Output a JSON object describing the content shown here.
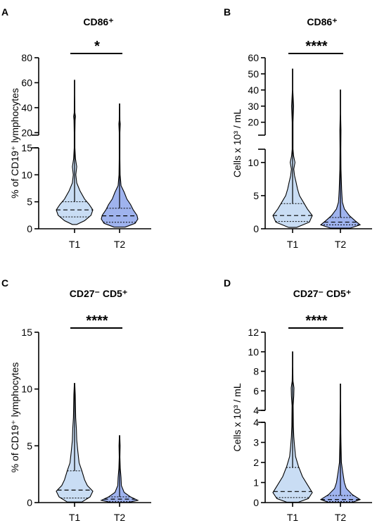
{
  "panels": [
    {
      "letter": "A",
      "title": "CD86⁺",
      "ylabel": "% of CD19⁺ lymphocytes",
      "significance": "*",
      "x_labels": [
        "T1",
        "T2"
      ],
      "lower_ticks": [
        "0",
        "5",
        "10",
        "15"
      ],
      "upper_ticks": [
        "20",
        "40",
        "60",
        "80"
      ]
    },
    {
      "letter": "B",
      "title": "CD86⁺",
      "ylabel": "Cells x 10³ / mL",
      "significance": "****",
      "x_labels": [
        "T1",
        "T2"
      ],
      "lower_ticks": [
        "0",
        "5",
        "10"
      ],
      "upper_ticks": [
        "20",
        "30",
        "40",
        "50",
        "60"
      ]
    },
    {
      "letter": "C",
      "title": "CD27⁻ CD5⁺",
      "ylabel": "% of CD19⁺ lymphocytes",
      "significance": "****",
      "x_labels": [
        "T1",
        "T2"
      ],
      "lower_ticks": [
        "0",
        "5",
        "10",
        "15"
      ],
      "upper_ticks": []
    },
    {
      "letter": "D",
      "title": "CD27⁻ CD5⁺",
      "ylabel": "Cells x 10³ / mL",
      "significance": "****",
      "x_labels": [
        "T1",
        "T2"
      ],
      "lower_ticks": [
        "0",
        "1",
        "2",
        "3",
        "4"
      ],
      "upper_ticks": [
        "4",
        "6",
        "8",
        "10",
        "12"
      ]
    }
  ],
  "colors": {
    "T1": "#c9ddf4",
    "T2": "#9fb3ee",
    "line": "#000000"
  },
  "chart_data": [
    {
      "type": "violin",
      "title": "CD86⁺",
      "ylabel": "% of CD19⁺ lymphocytes",
      "y_axis_break": true,
      "lower_ylim": [
        0,
        15
      ],
      "upper_ylim": [
        18,
        80
      ],
      "series": [
        {
          "name": "T1",
          "median": 3.5,
          "q1": 2.2,
          "q3": 5.0,
          "min": 0.8,
          "max": 62,
          "density": [
            [
              0.8,
              0.12
            ],
            [
              1.5,
              0.55
            ],
            [
              2.5,
              0.9
            ],
            [
              3.5,
              1.0
            ],
            [
              4.5,
              0.8
            ],
            [
              5.5,
              0.55
            ],
            [
              7,
              0.3
            ],
            [
              8.5,
              0.12
            ],
            [
              10,
              0.07
            ],
            [
              11.5,
              0.12
            ],
            [
              13,
              0.05
            ],
            [
              15,
              0.02
            ],
            [
              20,
              0.02
            ],
            [
              30,
              0.03
            ],
            [
              33,
              0.05
            ],
            [
              36,
              0.02
            ],
            [
              50,
              0.01
            ],
            [
              62,
              0.01
            ]
          ]
        },
        {
          "name": "T2",
          "median": 2.4,
          "q1": 1.2,
          "q3": 3.8,
          "min": 0.3,
          "max": 43,
          "density": [
            [
              0.3,
              0.3
            ],
            [
              1,
              0.85
            ],
            [
              1.8,
              1.0
            ],
            [
              2.5,
              0.95
            ],
            [
              3.5,
              0.75
            ],
            [
              4.5,
              0.6
            ],
            [
              5.5,
              0.4
            ],
            [
              6.8,
              0.25
            ],
            [
              8,
              0.08
            ],
            [
              10,
              0.03
            ],
            [
              13,
              0.02
            ],
            [
              15,
              0.02
            ],
            [
              20,
              0.02
            ],
            [
              27,
              0.04
            ],
            [
              30,
              0.02
            ],
            [
              43,
              0.01
            ]
          ]
        }
      ],
      "significance": "*"
    },
    {
      "type": "violin",
      "title": "CD86⁺",
      "ylabel": "Cells x 10³ / mL",
      "y_axis_break": true,
      "lower_ylim": [
        0,
        12
      ],
      "upper_ylim": [
        12,
        60
      ],
      "series": [
        {
          "name": "T1",
          "median": 2.0,
          "q1": 1.1,
          "q3": 3.8,
          "min": 0.2,
          "max": 53,
          "density": [
            [
              0.2,
              0.2
            ],
            [
              1,
              0.85
            ],
            [
              2,
              1.0
            ],
            [
              3,
              0.75
            ],
            [
              4,
              0.55
            ],
            [
              5,
              0.35
            ],
            [
              6,
              0.25
            ],
            [
              7,
              0.18
            ],
            [
              8,
              0.1
            ],
            [
              9,
              0.06
            ],
            [
              10,
              0.12
            ],
            [
              11,
              0.05
            ],
            [
              12,
              0.02
            ],
            [
              20,
              0.02
            ],
            [
              30,
              0.05
            ],
            [
              40,
              0.01
            ],
            [
              53,
              0.01
            ]
          ]
        },
        {
          "name": "T2",
          "median": 1.0,
          "q1": 0.6,
          "q3": 1.7,
          "min": 0.1,
          "max": 40,
          "density": [
            [
              0.1,
              0.5
            ],
            [
              0.6,
              1.0
            ],
            [
              1.2,
              0.75
            ],
            [
              2,
              0.45
            ],
            [
              3,
              0.2
            ],
            [
              4,
              0.1
            ],
            [
              5,
              0.08
            ],
            [
              6,
              0.06
            ],
            [
              7,
              0.05
            ],
            [
              9,
              0.03
            ],
            [
              12,
              0.02
            ],
            [
              15,
              0.03
            ],
            [
              25,
              0.01
            ],
            [
              40,
              0.01
            ]
          ]
        }
      ],
      "significance": "****"
    },
    {
      "type": "violin",
      "title": "CD27⁻ CD5⁺",
      "ylabel": "% of CD19⁺ lymphocytes",
      "y_axis_break": false,
      "lower_ylim": [
        0,
        15
      ],
      "series": [
        {
          "name": "T1",
          "median": 1.1,
          "q1": 0.4,
          "q3": 2.8,
          "min": 0.05,
          "max": 10.5,
          "density": [
            [
              0.05,
              0.4
            ],
            [
              0.5,
              0.85
            ],
            [
              1,
              1.0
            ],
            [
              1.5,
              0.7
            ],
            [
              2,
              0.55
            ],
            [
              2.8,
              0.4
            ],
            [
              3.5,
              0.25
            ],
            [
              4.5,
              0.18
            ],
            [
              5.5,
              0.12
            ],
            [
              6.5,
              0.1
            ],
            [
              7.5,
              0.06
            ],
            [
              8.5,
              0.05
            ],
            [
              9.5,
              0.04
            ],
            [
              10.5,
              0.01
            ]
          ]
        },
        {
          "name": "T2",
          "median": 0.3,
          "q1": 0.1,
          "q3": 0.5,
          "min": 0.02,
          "max": 5.9,
          "density": [
            [
              0.02,
              0.5
            ],
            [
              0.2,
              1.0
            ],
            [
              0.5,
              0.6
            ],
            [
              0.9,
              0.25
            ],
            [
              1.5,
              0.1
            ],
            [
              2.2,
              0.08
            ],
            [
              3,
              0.04
            ],
            [
              4,
              0.02
            ],
            [
              5,
              0.03
            ],
            [
              5.9,
              0.01
            ]
          ]
        }
      ],
      "significance": "****"
    },
    {
      "type": "violin",
      "title": "CD27⁻ CD5⁺",
      "ylabel": "Cells x 10³ / mL",
      "y_axis_break": true,
      "lower_ylim": [
        0,
        4
      ],
      "upper_ylim": [
        4,
        12
      ],
      "series": [
        {
          "name": "T1",
          "median": 0.55,
          "q1": 0.25,
          "q3": 1.75,
          "min": 0.02,
          "max": 10,
          "density": [
            [
              0.02,
              0.3
            ],
            [
              0.2,
              0.8
            ],
            [
              0.5,
              1.0
            ],
            [
              0.9,
              0.75
            ],
            [
              1.3,
              0.5
            ],
            [
              1.8,
              0.3
            ],
            [
              2.3,
              0.15
            ],
            [
              2.8,
              0.1
            ],
            [
              3.3,
              0.06
            ],
            [
              3.8,
              0.04
            ],
            [
              4.5,
              0.03
            ],
            [
              5.5,
              0.06
            ],
            [
              6.3,
              0.07
            ],
            [
              7,
              0.02
            ],
            [
              8.5,
              0.01
            ],
            [
              10,
              0.01
            ]
          ]
        },
        {
          "name": "T2",
          "median": 0.15,
          "q1": 0.05,
          "q3": 0.35,
          "min": 0.01,
          "max": 6.7,
          "density": [
            [
              0.01,
              0.6
            ],
            [
              0.15,
              1.0
            ],
            [
              0.4,
              0.6
            ],
            [
              0.7,
              0.3
            ],
            [
              1,
              0.2
            ],
            [
              1.5,
              0.12
            ],
            [
              2,
              0.05
            ],
            [
              2.5,
              0.04
            ],
            [
              3,
              0.03
            ],
            [
              3.5,
              0.02
            ],
            [
              4,
              0.02
            ],
            [
              5,
              0.01
            ],
            [
              6.7,
              0.01
            ]
          ]
        }
      ],
      "significance": "****"
    }
  ]
}
